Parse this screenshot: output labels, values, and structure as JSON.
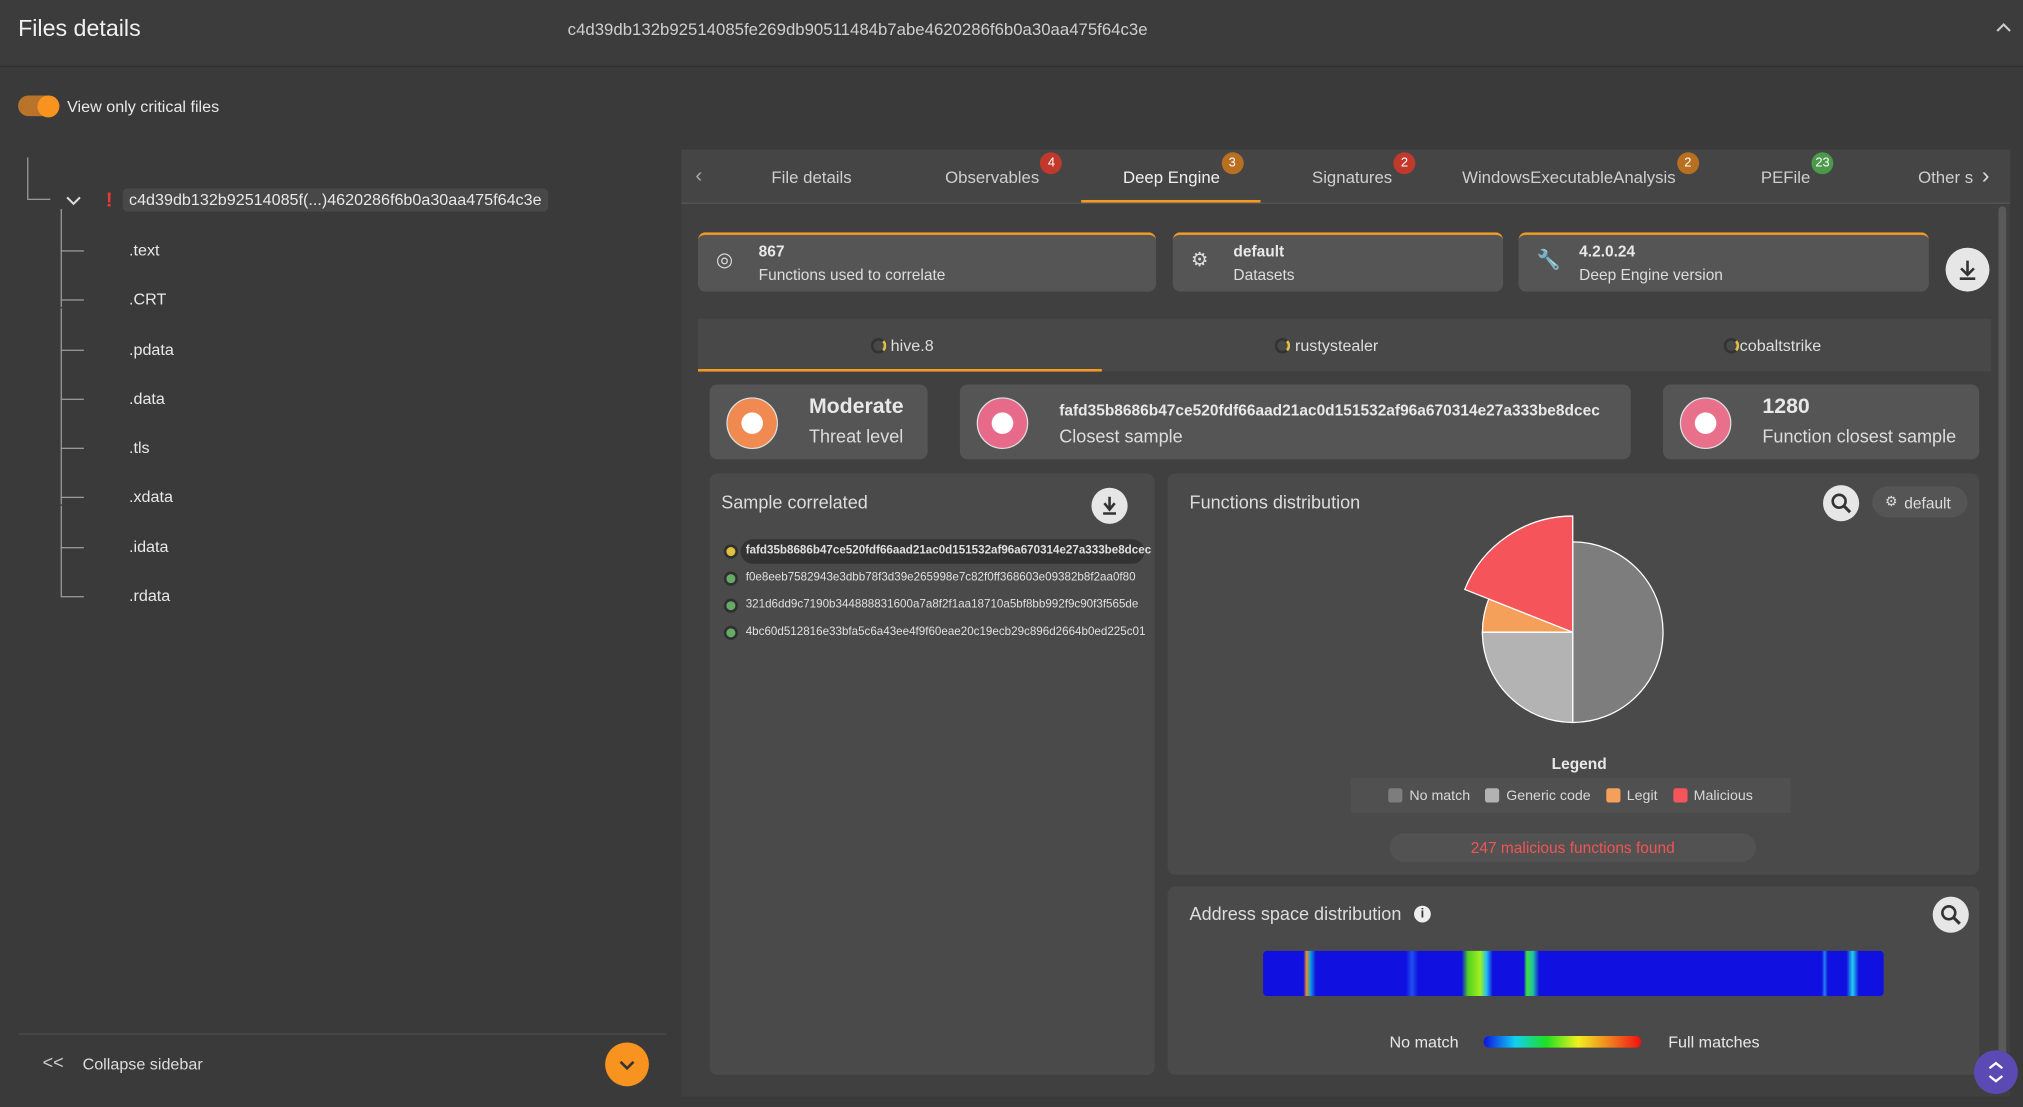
{
  "header": {
    "title": "Files details",
    "hash": "c4d39db132b92514085fe269db90511484b7abe4620286f6b0a30aa475f64c3e"
  },
  "toggle_label": "View only critical files",
  "tree": {
    "root": "c4d39db132b92514085f(...)4620286f6b0a30aa475f64c3e",
    "children": [
      ".text",
      ".CRT",
      ".pdata",
      ".data",
      ".tls",
      ".xdata",
      ".idata",
      ".rdata"
    ]
  },
  "tabs": [
    {
      "label": "File details"
    },
    {
      "label": "Observables",
      "badge": "4"
    },
    {
      "label": "Deep Engine",
      "badge": "3"
    },
    {
      "label": "Signatures",
      "badge": "2"
    },
    {
      "label": "WindowsExecutableAnalysis",
      "badge": "2"
    },
    {
      "label": "PEFile",
      "badge": "23"
    },
    {
      "label": "Other s"
    }
  ],
  "info_cards": [
    {
      "value": "867",
      "label": "Functions used to correlate"
    },
    {
      "value": "default",
      "label": "Datasets"
    },
    {
      "value": "4.2.0.24",
      "label": "Deep Engine version"
    }
  ],
  "sub_tabs": [
    "hive.8",
    "rustystealer",
    "cobaltstrike"
  ],
  "summary": [
    {
      "value": "Moderate",
      "label": "Threat level"
    },
    {
      "value": "fafd35b8686b47ce520fdf66aad21ac0d151532af96a670314e27a333be8dcec",
      "label": "Closest sample"
    },
    {
      "value": "1280",
      "label": "Function closest sample"
    }
  ],
  "samples": {
    "title": "Sample correlated",
    "items": [
      "fafd35b8686b47ce520fdf66aad21ac0d151532af96a670314e27a333be8dcec",
      "f0e8eeb7582943e3dbb78f3d39e265998e7c82f0ff368603e09382b8f2aa0f80",
      "321d6dd9c7190b344888831600a7a8f2f1aa18710a5bf8bb992f9c90f3f565de",
      "4bc60d512816e33bfa5c6a43ee4f9f60eae20c19ecb29c896d2664b0ed225c01"
    ]
  },
  "chart_data": {
    "type": "pie",
    "title": "Functions distribution",
    "dataset": "default",
    "legend_title": "Legend",
    "categories": [
      "No match",
      "Generic code",
      "Legit",
      "Malicious"
    ],
    "values": [
      50,
      25,
      6,
      19
    ],
    "colors": [
      "#7d7d7d",
      "#b3b3b3",
      "#f5a05a",
      "#f5555a"
    ],
    "annotation": "247 malicious functions found"
  },
  "address_space": {
    "title": "Address space distribution",
    "min_label": "No match",
    "max_label": "Full matches"
  },
  "sidebar": {
    "collapse": "Collapse sidebar"
  }
}
